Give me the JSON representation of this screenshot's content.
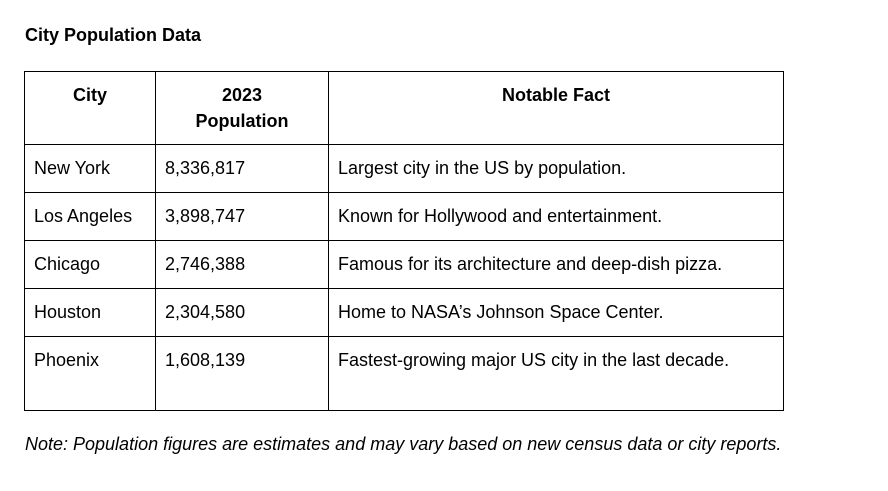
{
  "title": "City Population Data",
  "table": {
    "headers": [
      "City",
      "2023\nPopulation",
      "Notable Fact"
    ],
    "rows": [
      {
        "city": "New York",
        "population": "8,336,817",
        "fact": "Largest city in the US by population."
      },
      {
        "city": "Los Angeles",
        "population": "3,898,747",
        "fact": "Known for Hollywood and entertainment."
      },
      {
        "city": "Chicago",
        "population": "2,746,388",
        "fact": "Famous for its architecture and deep-dish pizza."
      },
      {
        "city": "Houston",
        "population": "2,304,580",
        "fact": "Home to NASA’s Johnson Space Center."
      },
      {
        "city": "Phoenix",
        "population": "1,608,139",
        "fact": "Fastest-growing major US city in the last decade."
      }
    ]
  },
  "note": "Note: Population figures are estimates and may vary based on new census data or city reports."
}
